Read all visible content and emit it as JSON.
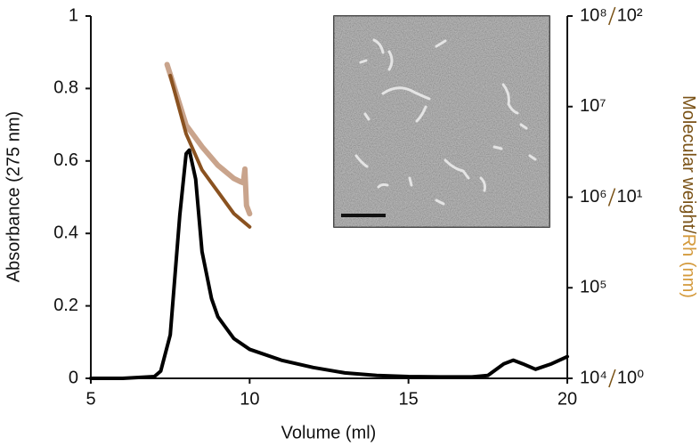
{
  "chart_data": {
    "type": "line",
    "xlabel": "Volume (ml)",
    "ylabel": "Absorbance (275 nm)",
    "y2label": "Molecular weight/",
    "y3label": "Rh (nm)",
    "xlim": [
      5,
      20
    ],
    "xticks": [
      5,
      10,
      15,
      20
    ],
    "ylim": [
      0,
      1
    ],
    "yticks": [
      0,
      0.2,
      0.4,
      0.6,
      0.8,
      1
    ],
    "y2lim": [
      10000,
      100000000
    ],
    "y2ticks": [
      {
        "value": 10000,
        "label": "10⁴"
      },
      {
        "value": 100000,
        "label": "10⁵"
      },
      {
        "value": 1000000,
        "label": "10⁶"
      },
      {
        "value": 10000000,
        "label": "10⁷"
      },
      {
        "value": 100000000,
        "label": "10⁸"
      }
    ],
    "y2color": "#7a5216",
    "y3lim": [
      1,
      100
    ],
    "y3ticks": [
      {
        "value": 1,
        "label": "10⁰"
      },
      {
        "value": 10,
        "label": "10¹"
      },
      {
        "value": 100,
        "label": "10²"
      }
    ],
    "y3color": "#d49a3c",
    "y2log": true,
    "y3log": true,
    "series": [
      {
        "color": "#000000",
        "axis": "y",
        "x": [
          5,
          6,
          7,
          7.2,
          7.5,
          7.8,
          8.0,
          8.1,
          8.3,
          8.5,
          8.8,
          9,
          9.5,
          10,
          11,
          12,
          13,
          14,
          15,
          16,
          17,
          17.5,
          18,
          18.3,
          18.6,
          19,
          19.5,
          20
        ],
        "values": [
          0,
          0,
          0.005,
          0.02,
          0.12,
          0.45,
          0.62,
          0.63,
          0.55,
          0.35,
          0.22,
          0.17,
          0.11,
          0.08,
          0.05,
          0.03,
          0.015,
          0.008,
          0.005,
          0.004,
          0.004,
          0.008,
          0.04,
          0.05,
          0.04,
          0.025,
          0.04,
          0.06
        ]
      },
      {
        "color": "#8a5220",
        "axis": "y2",
        "x": [
          7.5,
          8,
          8.5,
          9,
          9.5,
          10
        ],
        "values": [
          22000000,
          5000000,
          2000000,
          1150000,
          660000,
          470000
        ]
      },
      {
        "color": "#c9a48c",
        "axis": "y3",
        "x": [
          7.4,
          7.6,
          8,
          8.5,
          9,
          9.5,
          9.7,
          9.8,
          9.85,
          9.9,
          10
        ],
        "values": [
          54,
          42,
          25,
          19,
          15,
          12.7,
          12.2,
          12,
          14.3,
          9,
          8.1
        ]
      }
    ]
  }
}
